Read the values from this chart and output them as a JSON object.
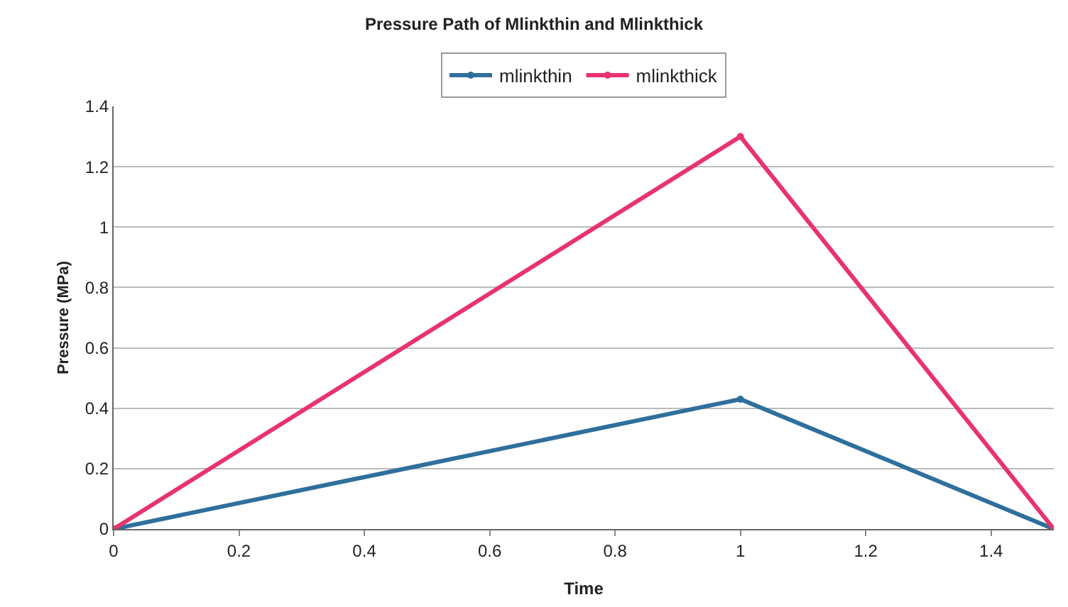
{
  "chart_data": {
    "type": "line",
    "title": "Pressure Path of Mlinkthin and Mlinkthick",
    "xlabel": "Time",
    "ylabel": "Pressure (MPa)",
    "x": [
      0,
      1,
      1.5
    ],
    "series": [
      {
        "name": "mlinkthin",
        "color": "#2f6f9c",
        "values": [
          0,
          0.43,
          0
        ]
      },
      {
        "name": "mlinkthick",
        "color": "#e8336d",
        "values": [
          0,
          1.3,
          0
        ]
      }
    ],
    "xlim": [
      0,
      1.5
    ],
    "xticks": [
      0,
      0.2,
      0.4,
      0.6,
      0.8,
      1,
      1.2,
      1.4
    ],
    "ylim": [
      0,
      1.4
    ],
    "yticks": [
      0,
      0.2,
      0.4,
      0.6,
      0.8,
      1,
      1.2,
      1.4
    ],
    "grid": "y",
    "legend": "top",
    "marker": "circle",
    "line_style": "solid"
  }
}
